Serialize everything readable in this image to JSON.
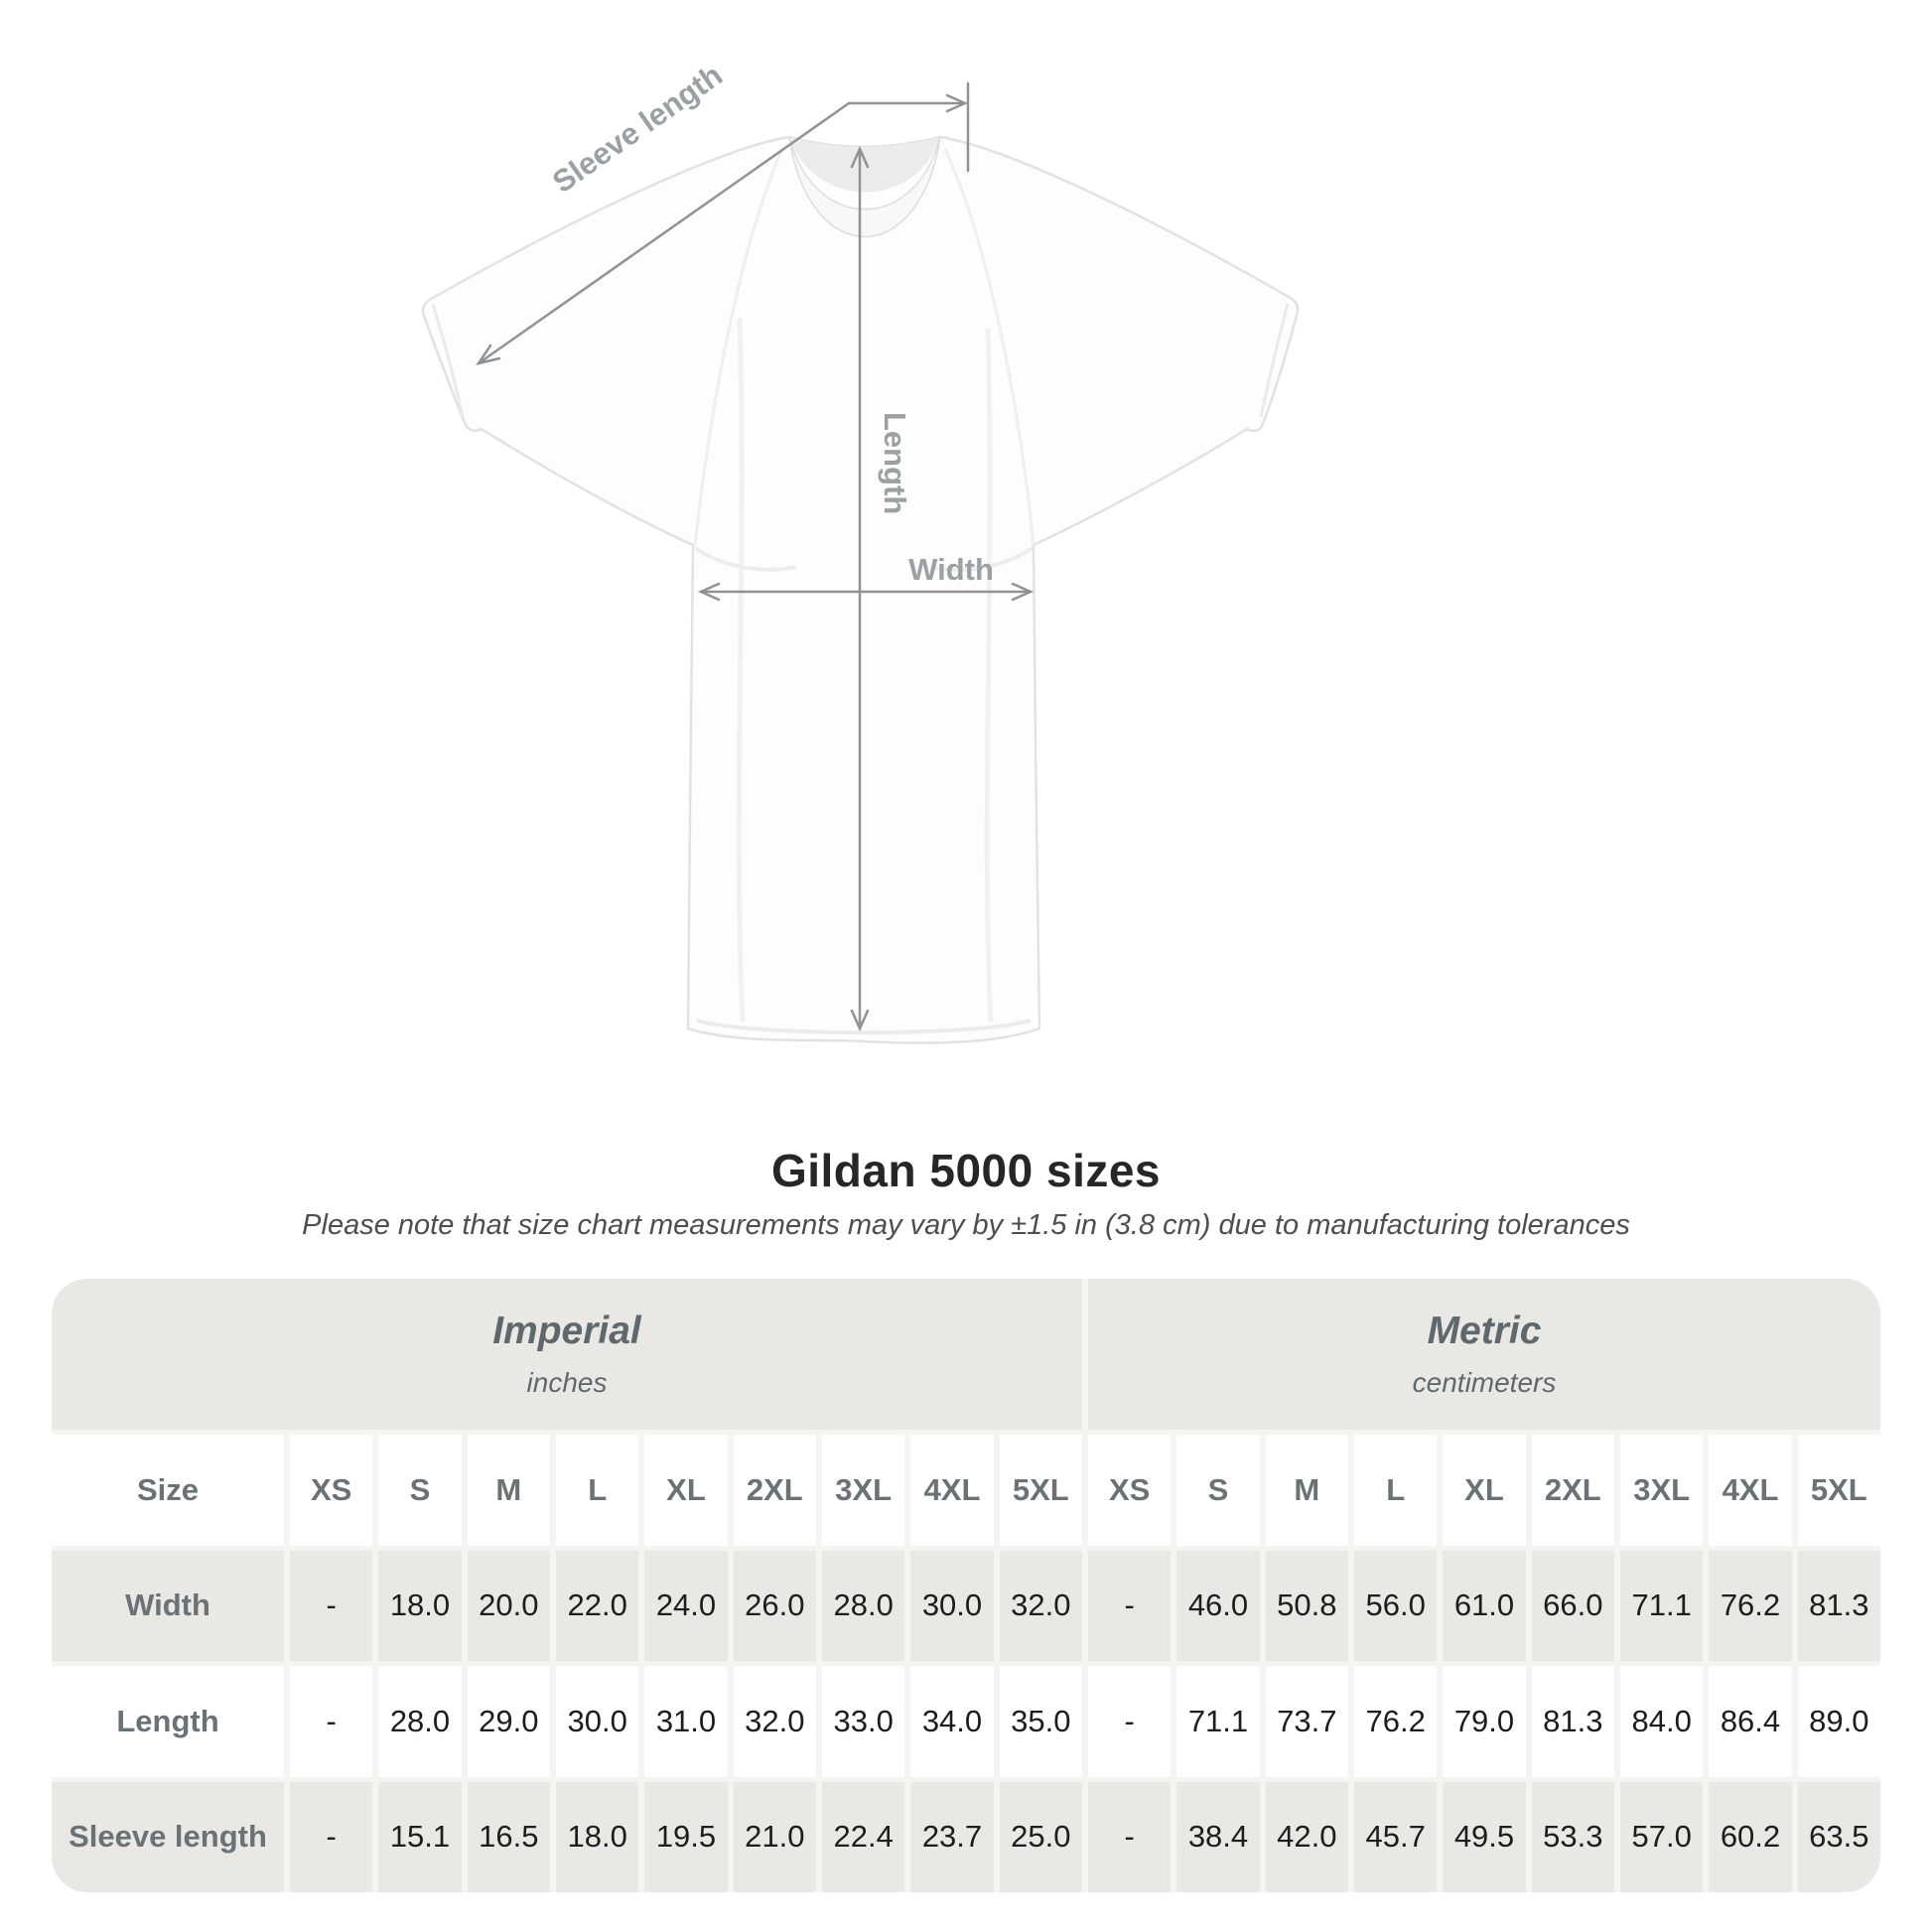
{
  "diagram": {
    "labels": {
      "sleeve_length": "Sleeve length",
      "length": "Length",
      "width": "Width"
    },
    "line_color": "#8f9396",
    "label_color": "#9ba0a3"
  },
  "title": "Gildan 5000 sizes",
  "subtitle": "Please note that size chart measurements may vary by ±1.5 in (3.8 cm) due to manufacturing tolerances",
  "table": {
    "sections": [
      {
        "name": "Imperial",
        "unit": "inches"
      },
      {
        "name": "Metric",
        "unit": "centimeters"
      }
    ],
    "size_header_label": "Size",
    "sizes": [
      "XS",
      "S",
      "M",
      "L",
      "XL",
      "2XL",
      "3XL",
      "4XL",
      "5XL"
    ],
    "rows": [
      {
        "label": "Width",
        "imperial": [
          "-",
          "18.0",
          "20.0",
          "22.0",
          "24.0",
          "26.0",
          "28.0",
          "30.0",
          "32.0"
        ],
        "metric": [
          "-",
          "46.0",
          "50.8",
          "56.0",
          "61.0",
          "66.0",
          "71.1",
          "76.2",
          "81.3"
        ]
      },
      {
        "label": "Length",
        "imperial": [
          "-",
          "28.0",
          "29.0",
          "30.0",
          "31.0",
          "32.0",
          "33.0",
          "34.0",
          "35.0"
        ],
        "metric": [
          "-",
          "71.1",
          "73.7",
          "76.2",
          "79.0",
          "81.3",
          "84.0",
          "86.4",
          "89.0"
        ]
      },
      {
        "label": "Sleeve length",
        "imperial": [
          "-",
          "15.1",
          "16.5",
          "18.0",
          "19.5",
          "21.0",
          "22.4",
          "23.7",
          "25.0"
        ],
        "metric": [
          "-",
          "38.4",
          "42.0",
          "45.7",
          "49.5",
          "53.3",
          "57.0",
          "60.2",
          "63.5"
        ]
      }
    ],
    "row_backgrounds": [
      "white",
      "gray",
      "white",
      "gray"
    ],
    "colors": {
      "band_gray": "#e9e8e5",
      "gap": "#f5f4f1",
      "label_text": "#6b7276",
      "value_text": "#1d1d1d"
    }
  }
}
